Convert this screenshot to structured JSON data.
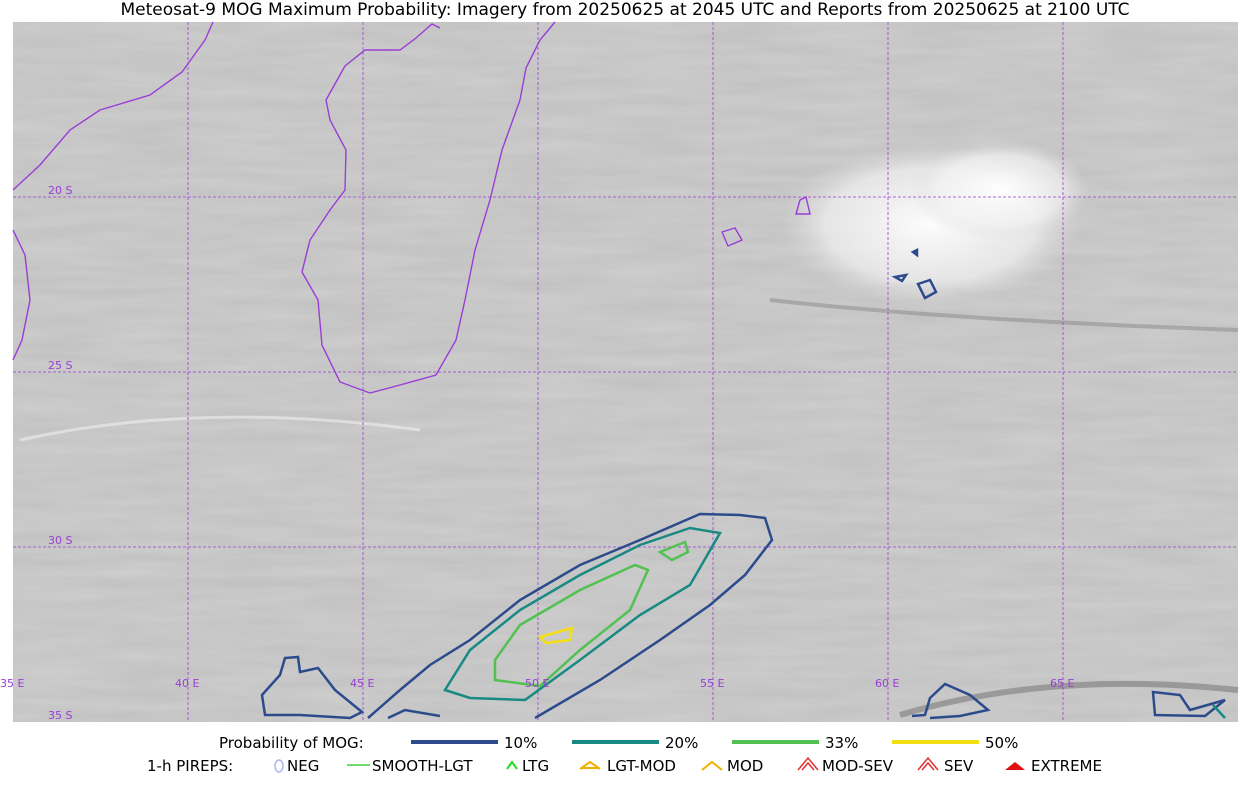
{
  "title": "Meteosat-9 MOG Maximum Probability: Imagery from 20250625 at 2045 UTC and Reports from 20250625 at 2100 UTC",
  "grid": {
    "lon_labels": [
      "35 E",
      "40 E",
      "45 E",
      "50 E",
      "55 E",
      "60 E",
      "65 E"
    ],
    "lat_labels": [
      "20 S",
      "25 S",
      "30 S",
      "35 S"
    ]
  },
  "legend": {
    "probability": {
      "title": "Probability of MOG:",
      "items": [
        "10%",
        "20%",
        "33%",
        "50%"
      ]
    },
    "pireps": {
      "title": "1-h PIREPS:",
      "items": [
        "NEG",
        "SMOOTH-LGT",
        "LTG",
        "LGT-MOD",
        "MOD",
        "MOD-SEV",
        "SEV",
        "EXTREME"
      ]
    }
  }
}
